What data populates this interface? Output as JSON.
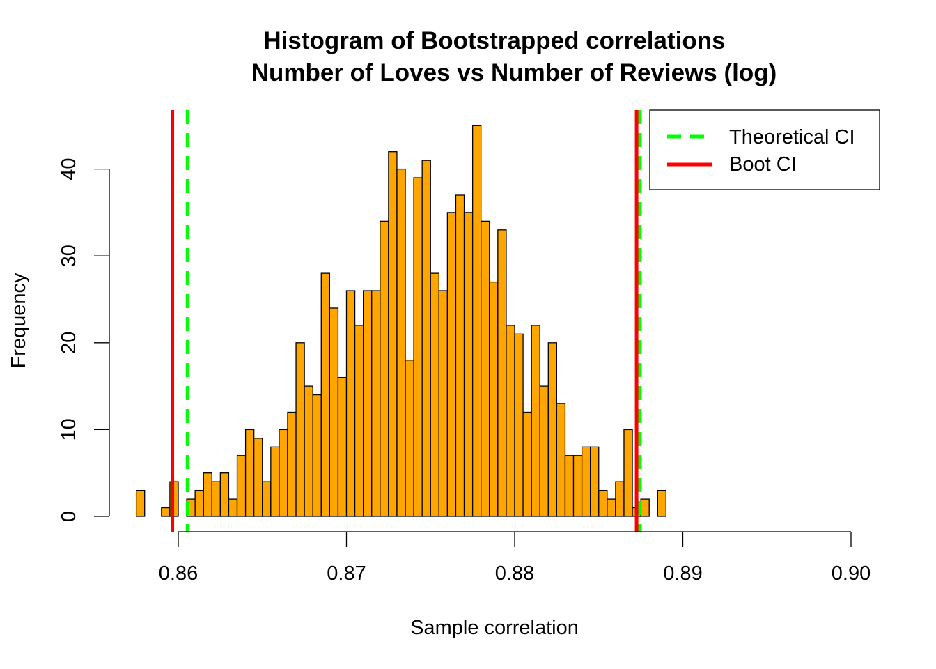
{
  "chart_data": {
    "type": "bar",
    "title": "Histogram of Bootstrapped correlations",
    "subtitle": "Number of Loves vs Number of Reviews (log)",
    "xlabel": "Sample correlation",
    "ylabel": "Frequency",
    "xlim": [
      0.86,
      0.9
    ],
    "ylim": [
      0,
      45
    ],
    "x_ticks": [
      "0.86",
      "0.87",
      "0.88",
      "0.89",
      "0.90"
    ],
    "x_tick_values": [
      0.86,
      0.87,
      0.88,
      0.89,
      0.9
    ],
    "y_ticks": [
      "0",
      "10",
      "20",
      "30",
      "40"
    ],
    "y_tick_values": [
      0,
      10,
      20,
      30,
      40
    ],
    "bin_start": 0.8575,
    "bin_width": 0.0005,
    "counts": [
      3,
      0,
      0,
      1,
      4,
      0,
      2,
      3,
      5,
      4,
      5,
      2,
      7,
      10,
      9,
      4,
      8,
      10,
      12,
      20,
      15,
      14,
      28,
      24,
      16,
      26,
      22,
      26,
      26,
      34,
      42,
      40,
      18,
      39,
      41,
      28,
      26,
      35,
      37,
      35,
      45,
      34,
      27,
      33,
      22,
      21,
      12,
      22,
      15,
      20,
      13,
      7,
      7,
      8,
      8,
      3,
      2,
      4,
      10,
      1,
      2,
      0,
      3
    ],
    "bar_color": "#FFA500",
    "lines": [
      {
        "name": "Theoretical CI",
        "x": 0.86055,
        "color": "#00FF00",
        "style": "dashed"
      },
      {
        "name": "Theoretical CI",
        "x": 0.88745,
        "color": "#00FF00",
        "style": "dashed"
      },
      {
        "name": "Boot CI",
        "x": 0.85965,
        "color": "#FF0000",
        "style": "solid"
      },
      {
        "name": "Boot CI",
        "x": 0.88725,
        "color": "#FF0000",
        "style": "solid"
      }
    ],
    "legend": {
      "position": "top-right",
      "entries": [
        {
          "label": "Theoretical CI",
          "color": "#00FF00",
          "style": "dashed"
        },
        {
          "label": "Boot CI",
          "color": "#FF0000",
          "style": "solid"
        }
      ]
    },
    "grid": false
  }
}
